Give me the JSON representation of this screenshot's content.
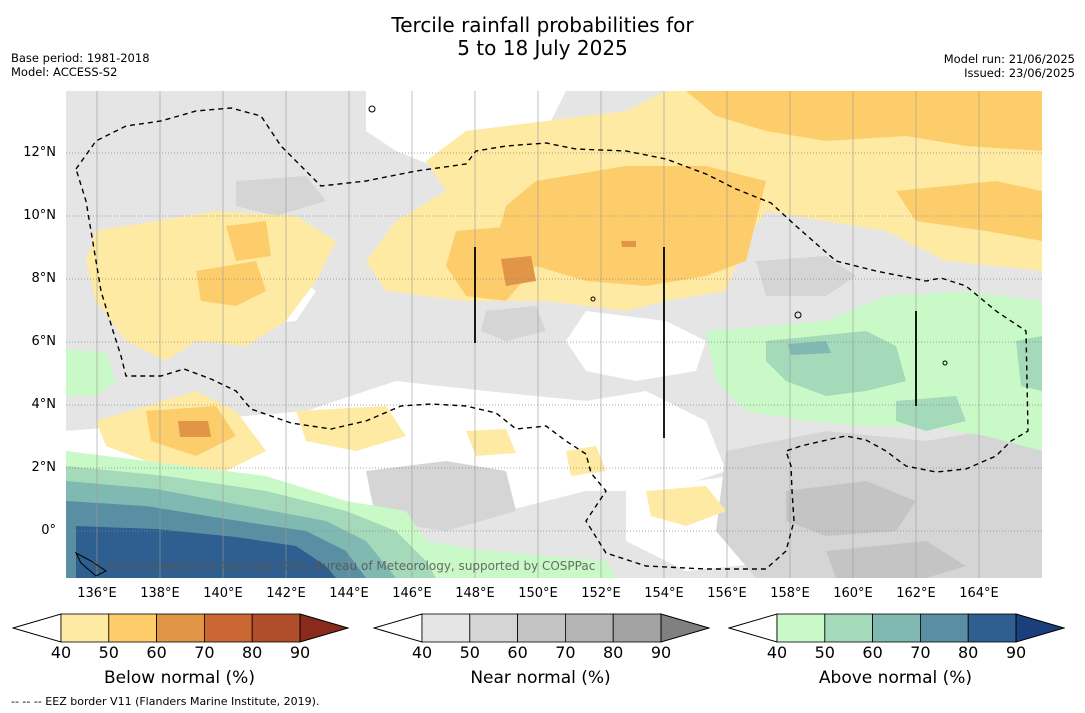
{
  "title_line1": "Tercile rainfall probabilities for",
  "title_line2": "5 to 18 July 2025",
  "meta_left": [
    "Base period: 1981-2018",
    "Model: ACCESS-S2"
  ],
  "meta_right": [
    "Model run: 21/06/2025",
    "Issued: 23/06/2025"
  ],
  "lon_labels": [
    "136°E",
    "138°E",
    "140°E",
    "142°E",
    "144°E",
    "146°E",
    "148°E",
    "150°E",
    "152°E",
    "154°E",
    "156°E",
    "158°E",
    "160°E",
    "162°E",
    "164°E"
  ],
  "lat_labels": [
    "12°N",
    "10°N",
    "8°N",
    "6°N",
    "4°N",
    "2°N",
    "0°"
  ],
  "copyright": "© Commonwealth of Australia 2025, Bureau of Meteorology, supported by COSPPac",
  "colorbars": [
    {
      "name": "below",
      "title": "Below normal (%)",
      "ticks": [
        "40",
        "50",
        "60",
        "70",
        "80",
        "90"
      ],
      "colors": [
        "#ffffff",
        "#feeaa2",
        "#fdcd6c",
        "#e09547",
        "#cc6633",
        "#b04d2a",
        "#8a2a1a"
      ]
    },
    {
      "name": "near",
      "title": "Near normal (%)",
      "ticks": [
        "40",
        "50",
        "60",
        "70",
        "80",
        "90"
      ],
      "colors": [
        "#ffffff",
        "#e5e5e5",
        "#d5d5d5",
        "#c4c4c4",
        "#b4b4b4",
        "#a2a2a2",
        "#808080"
      ]
    },
    {
      "name": "above",
      "title": "Above normal (%)",
      "ticks": [
        "40",
        "50",
        "60",
        "70",
        "80",
        "90"
      ],
      "colors": [
        "#ffffff",
        "#c8f9c6",
        "#a4d9b9",
        "#80b8b2",
        "#5a8fa3",
        "#2f5f90",
        "#1a3f7a"
      ]
    }
  ],
  "footer": "--  --  -- EEZ border V11 (Flanders Marine Institute, 2019)."
}
